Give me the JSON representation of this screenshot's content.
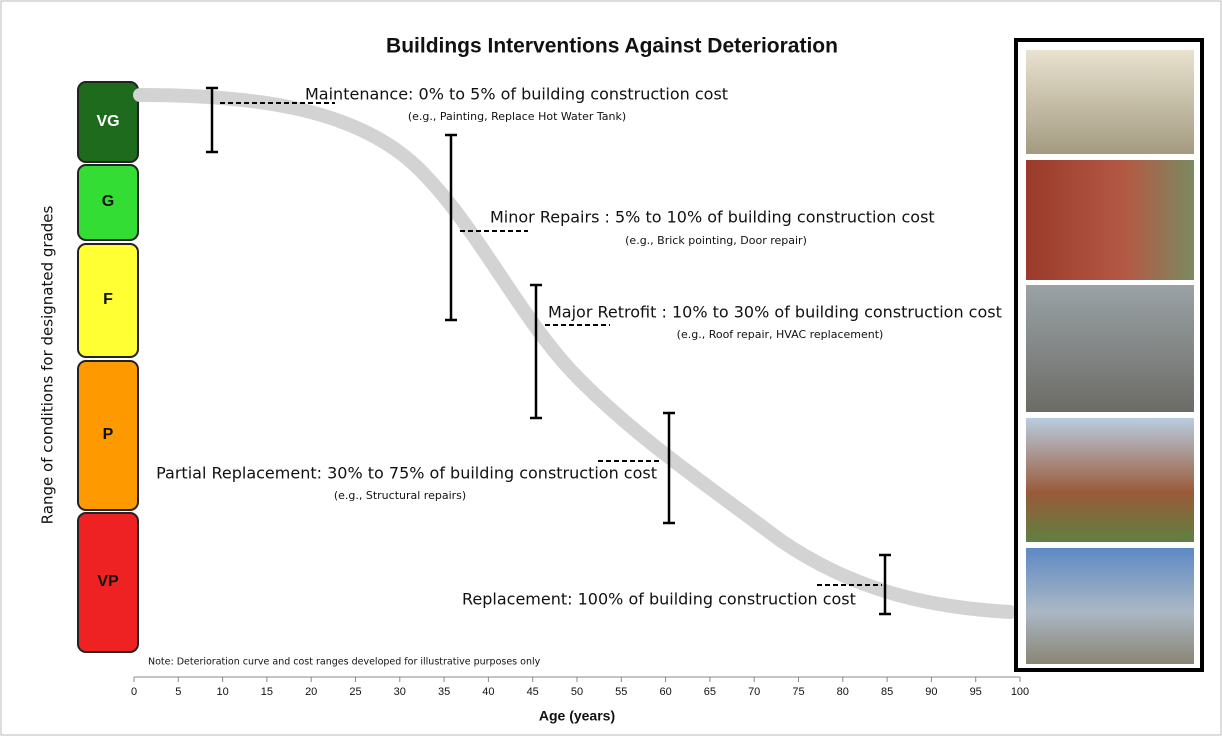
{
  "title": "Buildings Interventions Against Deterioration",
  "y_axis": {
    "label": "Range of conditions for designated grades"
  },
  "grades": [
    "VG",
    "G",
    "F",
    "P",
    "VP"
  ],
  "interventions": [
    {
      "label": "Maintenance: 0% to 5% of building construction cost",
      "example": "(e.g., Painting, Replace Hot Water Tank)"
    },
    {
      "label": "Minor Repairs : 5% to 10% of building construction cost",
      "example": "(e.g., Brick pointing, Door repair)"
    },
    {
      "label": "Major Retrofit : 10% to 30% of building construction cost",
      "example": "(e.g., Roof repair, HVAC replacement)"
    },
    {
      "label": "Partial Replacement: 30% to 75% of building construction cost",
      "example": "(e.g., Structural repairs)"
    },
    {
      "label": "Replacement: 100% of building construction cost"
    }
  ],
  "note": "Note: Deterioration curve and cost ranges developed for illustrative purposes only",
  "x_axis": {
    "label": "Age (years)",
    "lim": [
      0,
      100
    ],
    "ticks": [
      0,
      5,
      10,
      15,
      20,
      25,
      30,
      35,
      40,
      45,
      50,
      55,
      60,
      65,
      70,
      75,
      80,
      85,
      90,
      95,
      100
    ]
  }
}
